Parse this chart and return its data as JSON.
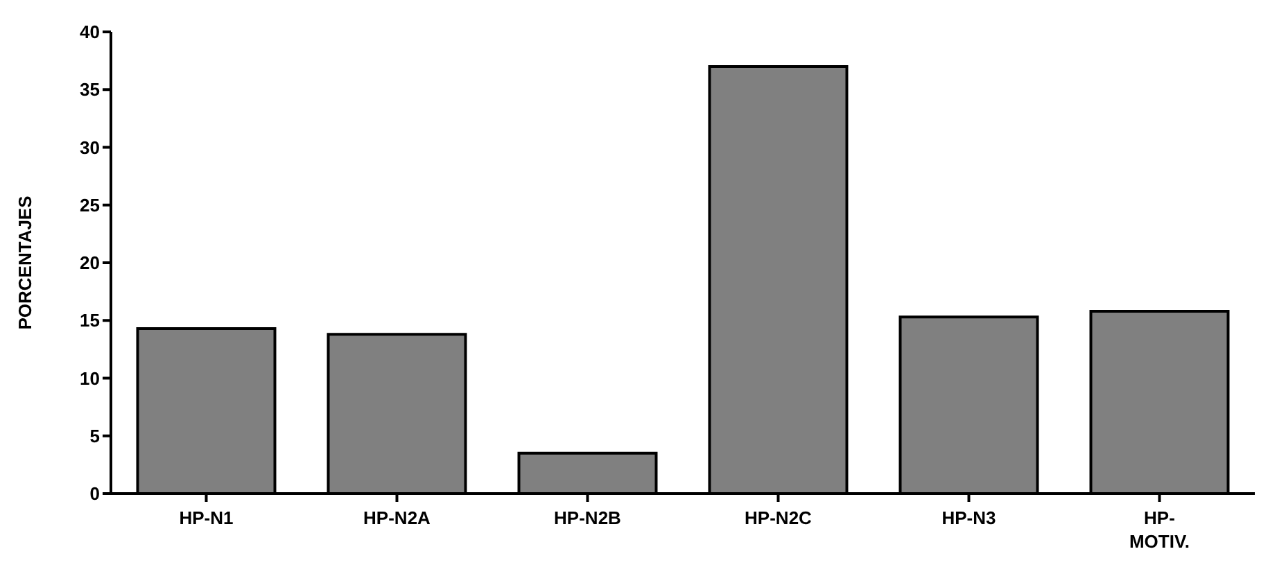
{
  "chart_data": {
    "type": "bar",
    "ylabel": "PORCENTAJES",
    "categories": [
      "HP-N1",
      "HP-N2A",
      "HP-N2B",
      "HP-N2C",
      "HP-N3",
      "HP-MOTIV."
    ],
    "values": [
      14.3,
      13.8,
      3.5,
      37,
      15.3,
      15.8
    ],
    "color": "#808080",
    "ylim": [
      0,
      40
    ],
    "yticks": [
      0,
      5,
      10,
      15,
      20,
      25,
      30,
      35,
      40
    ],
    "grid": false
  }
}
